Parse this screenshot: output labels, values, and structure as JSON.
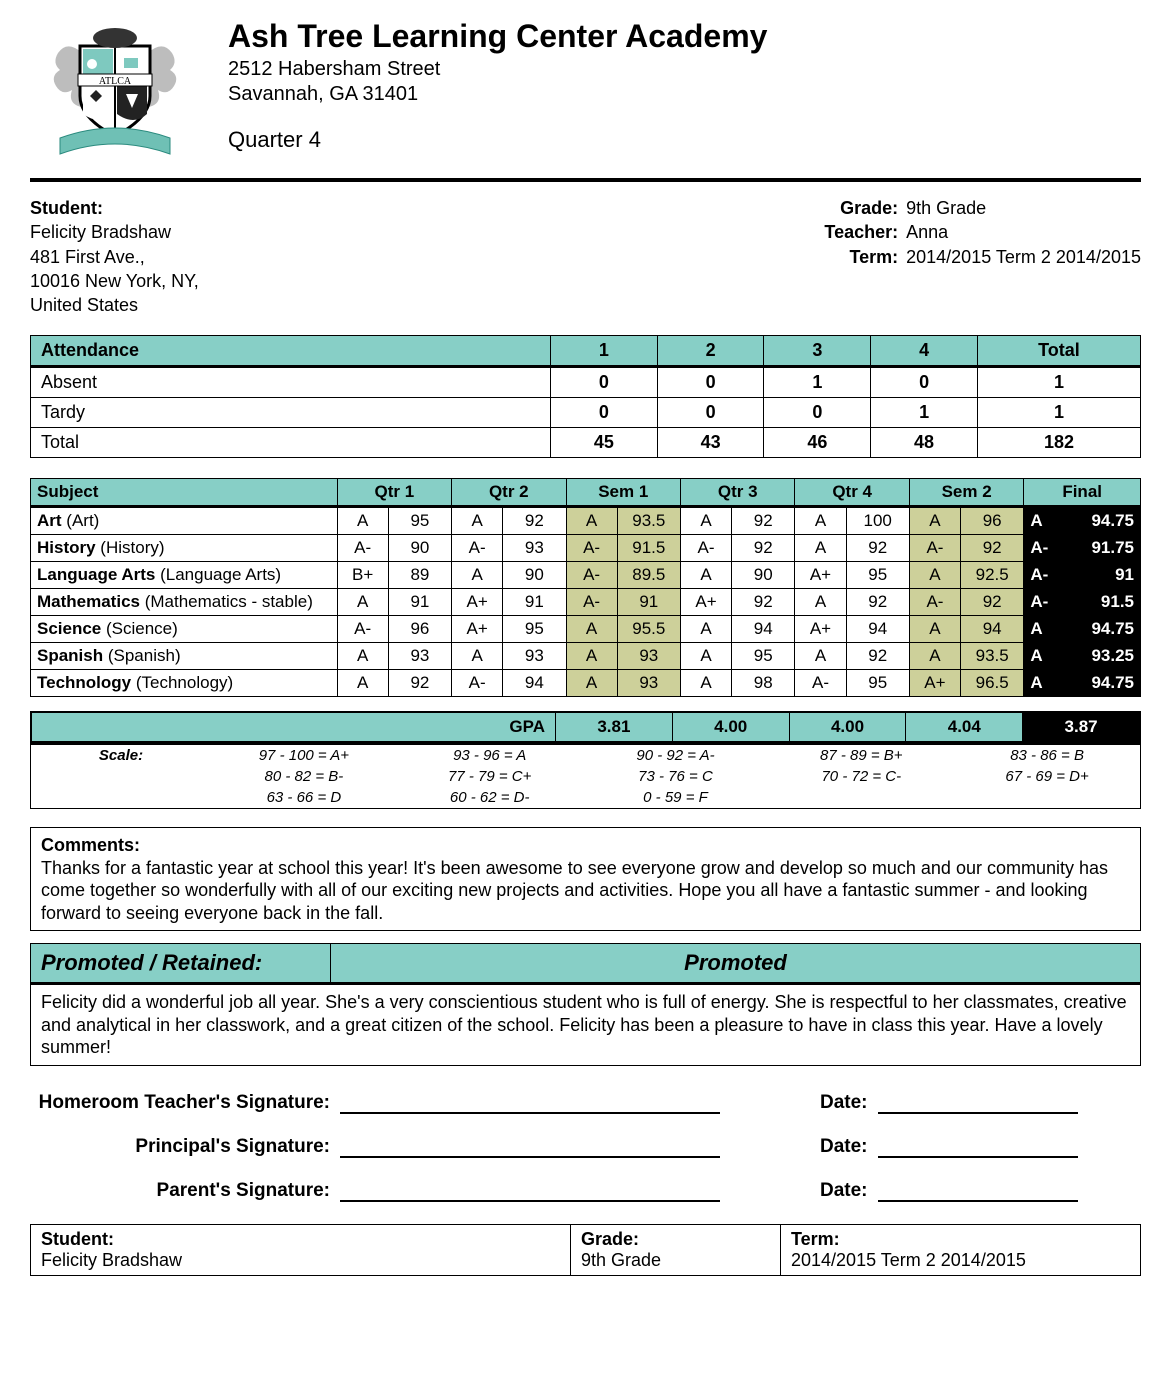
{
  "colors": {
    "teal": "#87cfc6",
    "olive": "#cdd09a",
    "black": "#000000",
    "white": "#ffffff"
  },
  "school": {
    "name": "Ash Tree Learning Center Academy",
    "address_line1": "2512 Habersham Street",
    "address_line2": "Savannah, GA 31401",
    "period": "Quarter 4",
    "crest_initials": "ATLCA"
  },
  "student": {
    "label": "Student:",
    "name": "Felicity Bradshaw",
    "addr1": "481 First Ave.,",
    "addr2": "10016 New York, NY,",
    "addr3": "United States"
  },
  "meta": {
    "grade_label": "Grade:",
    "grade": "9th Grade",
    "teacher_label": "Teacher:",
    "teacher": "Anna",
    "term_label": "Term:",
    "term": "2014/2015 Term 2 2014/2015"
  },
  "attendance": {
    "header_label": "Attendance",
    "columns": [
      "1",
      "2",
      "3",
      "4",
      "Total"
    ],
    "rows": [
      {
        "label": "Absent",
        "values": [
          "0",
          "0",
          "1",
          "0",
          "1"
        ]
      },
      {
        "label": "Tardy",
        "values": [
          "0",
          "0",
          "0",
          "1",
          "1"
        ]
      },
      {
        "label": "Total",
        "values": [
          "45",
          "43",
          "46",
          "48",
          "182"
        ]
      }
    ]
  },
  "subjects": {
    "header_label": "Subject",
    "columns": [
      "Qtr 1",
      "Qtr 2",
      "Sem 1",
      "Qtr 3",
      "Qtr 4",
      "Sem 2",
      "Final"
    ],
    "col_widths": {
      "name": 300,
      "grade": 50,
      "score": 62,
      "final_grade": 48,
      "final_score": 66
    },
    "rows": [
      {
        "name": "Art",
        "paren": "(Art)",
        "q1g": "A",
        "q1s": "95",
        "q2g": "A",
        "q2s": "92",
        "s1g": "A",
        "s1s": "93.5",
        "q3g": "A",
        "q3s": "92",
        "q4g": "A",
        "q4s": "100",
        "s2g": "A",
        "s2s": "96",
        "fg": "A",
        "fs": "94.75"
      },
      {
        "name": "History",
        "paren": "(History)",
        "q1g": "A-",
        "q1s": "90",
        "q2g": "A-",
        "q2s": "93",
        "s1g": "A-",
        "s1s": "91.5",
        "q3g": "A-",
        "q3s": "92",
        "q4g": "A",
        "q4s": "92",
        "s2g": "A-",
        "s2s": "92",
        "fg": "A-",
        "fs": "91.75"
      },
      {
        "name": "Language Arts",
        "paren": "(Language Arts)",
        "q1g": "B+",
        "q1s": "89",
        "q2g": "A",
        "q2s": "90",
        "s1g": "A-",
        "s1s": "89.5",
        "q3g": "A",
        "q3s": "90",
        "q4g": "A+",
        "q4s": "95",
        "s2g": "A",
        "s2s": "92.5",
        "fg": "A-",
        "fs": "91"
      },
      {
        "name": "Mathematics ",
        "paren": "(Mathematics - stable)",
        "q1g": "A",
        "q1s": "91",
        "q2g": "A+",
        "q2s": "91",
        "s1g": "A-",
        "s1s": "91",
        "q3g": "A+",
        "q3s": "92",
        "q4g": "A",
        "q4s": "92",
        "s2g": "A-",
        "s2s": "92",
        "fg": "A-",
        "fs": "91.5"
      },
      {
        "name": "Science",
        "paren": "(Science)",
        "q1g": "A-",
        "q1s": "96",
        "q2g": "A+",
        "q2s": "95",
        "s1g": "A",
        "s1s": "95.5",
        "q3g": "A",
        "q3s": "94",
        "q4g": "A+",
        "q4s": "94",
        "s2g": "A",
        "s2s": "94",
        "fg": "A",
        "fs": "94.75"
      },
      {
        "name": "Spanish",
        "paren": "(Spanish)",
        "q1g": "A",
        "q1s": "93",
        "q2g": "A",
        "q2s": "93",
        "s1g": "A",
        "s1s": "93",
        "q3g": "A",
        "q3s": "95",
        "q4g": "A",
        "q4s": "92",
        "s2g": "A",
        "s2s": "93.5",
        "fg": "A",
        "fs": "93.25"
      },
      {
        "name": "Technology",
        "paren": "(Technology)",
        "q1g": "A",
        "q1s": "92",
        "q2g": "A-",
        "q2s": "94",
        "s1g": "A",
        "s1s": "93",
        "q3g": "A",
        "q3s": "98",
        "q4g": "A-",
        "q4s": "95",
        "s2g": "A+",
        "s2s": "96.5",
        "fg": "A",
        "fs": "94.75"
      }
    ]
  },
  "gpa": {
    "label": "GPA",
    "values": [
      "3.81",
      "4.00",
      "4.00",
      "4.04",
      "3.87"
    ]
  },
  "scale": {
    "label": "Scale:",
    "rows": [
      [
        "97 - 100 = A+",
        "93 - 96 = A",
        "90 - 92 = A-",
        "87 - 89 = B+",
        "83 - 86 = B"
      ],
      [
        "80 - 82 = B-",
        "77 - 79 = C+",
        "73 - 76 = C",
        "70 - 72 = C-",
        "67 - 69 = D+"
      ],
      [
        "63 - 66 = D",
        "60 - 62 = D-",
        "0 - 59 = F",
        "",
        ""
      ]
    ]
  },
  "comments": {
    "label": "Comments:",
    "text": "Thanks for a fantastic year at school this year! It's been awesome to see everyone grow and develop so much and our community has come together so wonderfully with all of our exciting new projects and activities. Hope you all have a fantastic summer - and looking forward to seeing everyone back in the fall."
  },
  "promotion": {
    "label": "Promoted / Retained:",
    "value": "Promoted",
    "note": "Felicity did a wonderful job all year. She's a very conscientious student who is full of energy. She is respectful to her classmates, creative and analytical in her classwork, and a great citizen of the school. Felicity has been a pleasure to have in class this year. Have a lovely summer!"
  },
  "signatures": {
    "rows": [
      {
        "label": "Homeroom Teacher's Signature:"
      },
      {
        "label": "Principal's Signature:"
      },
      {
        "label": "Parent's Signature:"
      }
    ],
    "date_label": "Date:"
  },
  "footer": {
    "student_label": "Student:",
    "student": "Felicity Bradshaw",
    "grade_label": "Grade:",
    "grade": "9th Grade",
    "term_label": "Term:",
    "term": "2014/2015 Term 2 2014/2015"
  }
}
